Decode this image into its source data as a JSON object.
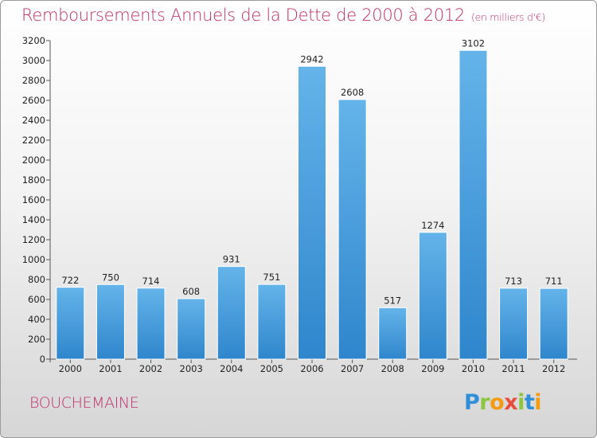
{
  "header": {
    "title": "Remboursements Annuels de la Dette de 2000 à 2012",
    "subtitle": "(en milliers d'€)"
  },
  "footer": {
    "city": "BOUCHEMAINE",
    "logo_letters": [
      "P",
      "r",
      "o",
      "x",
      "i",
      "t",
      "i"
    ],
    "logo_colors": [
      "#2f8fd8",
      "#8cc63f",
      "#f39c12",
      "#e74c3c",
      "#8cc63f",
      "#2f8fd8",
      "#f39c12"
    ]
  },
  "colors": {
    "title": "#c0306a",
    "bar_top": "#64b4ea",
    "bar_bottom": "#2f86cc",
    "bar_edge": "#ffffff"
  },
  "chart_data": {
    "type": "bar",
    "categories": [
      "2000",
      "2001",
      "2002",
      "2003",
      "2004",
      "2005",
      "2006",
      "2007",
      "2008",
      "2009",
      "2010",
      "2011",
      "2012"
    ],
    "values": [
      722,
      750,
      714,
      608,
      931,
      751,
      2942,
      2608,
      517,
      1274,
      3102,
      713,
      711
    ],
    "title": "Remboursements Annuels de la Dette de 2000 à 2012",
    "subtitle": "(en milliers d'€)",
    "xlabel": "",
    "ylabel": "",
    "ylim": [
      0,
      3200
    ],
    "yticks": [
      0,
      200,
      400,
      600,
      800,
      1000,
      1200,
      1400,
      1600,
      1800,
      2000,
      2200,
      2400,
      2600,
      2800,
      3000,
      3200
    ],
    "grid": false,
    "legend": "none",
    "data_labels": true
  }
}
